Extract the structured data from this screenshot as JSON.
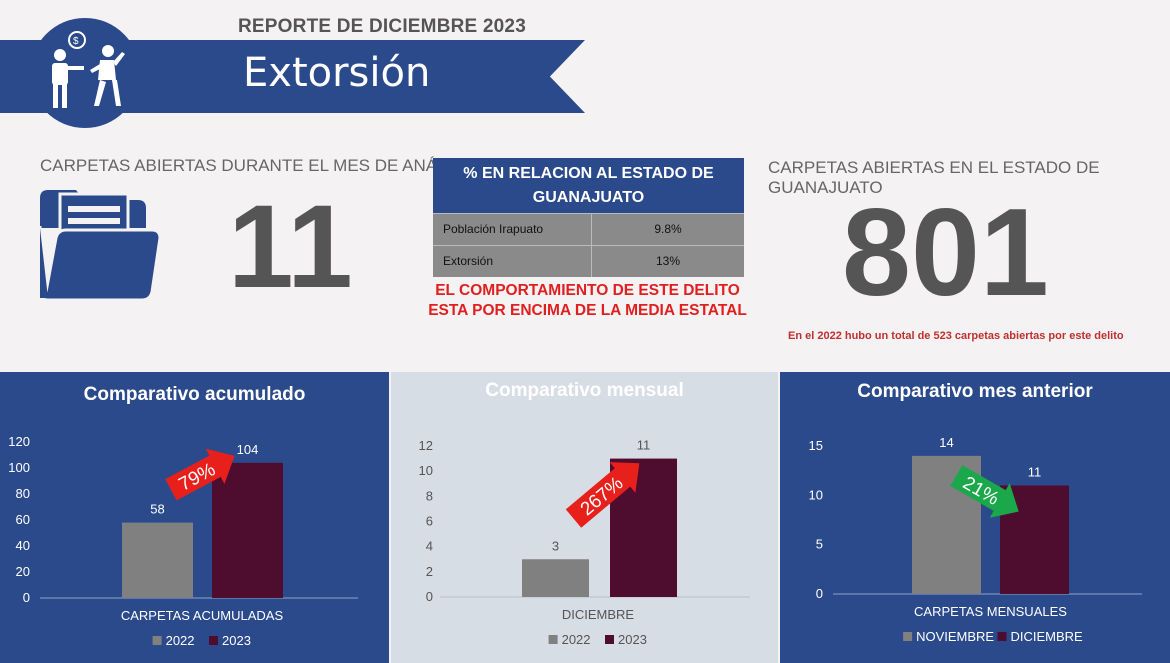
{
  "header": {
    "report_label": "REPORTE DE DICIEMBRE 2023",
    "crime_title": "Extorsión",
    "logo_icon": "extortion-people-icon",
    "brand_color": "#2b4a8c"
  },
  "left_stat": {
    "label": "CARPETAS ABIERTAS DURANTE EL MES DE ANÁLISIS",
    "value": "11",
    "icon": "folder-icon"
  },
  "relation_table": {
    "title": "% EN RELACION AL ESTADO DE GUANAJUATO",
    "rows": [
      {
        "label": "Población Irapuato",
        "value": "9.8%"
      },
      {
        "label": "Extorsión",
        "value": "13%"
      }
    ],
    "warning_line1": "EL COMPORTAMIENTO DE ESTE DELITO",
    "warning_line2": "ESTA POR ENCIMA DE LA MEDIA ESTATAL"
  },
  "right_stat": {
    "label": "CARPETAS ABIERTAS EN EL ESTADO DE GUANAJUATO",
    "value": "801",
    "note": "En el 2022  hubo un total de 523  carpetas abiertas por este delito"
  },
  "chart_data": [
    {
      "type": "bar",
      "title": "Comparativo acumulado",
      "categories": [
        "CARPETAS ACUMULADAS"
      ],
      "series": [
        {
          "name": "2022",
          "values": [
            58
          ],
          "color": "#808080"
        },
        {
          "name": "2023",
          "values": [
            104
          ],
          "color": "#4e0d2e"
        }
      ],
      "ylim": [
        0,
        120
      ],
      "yticks": [
        0,
        20,
        40,
        60,
        80,
        100,
        120
      ],
      "change_label": "79%",
      "change_color": "#e8201c",
      "change_direction": "up",
      "legend": "bottom",
      "background": "#2b4a8c"
    },
    {
      "type": "bar",
      "title": "Comparativo mensual",
      "categories": [
        "DICIEMBRE"
      ],
      "series": [
        {
          "name": "2022",
          "values": [
            3
          ],
          "color": "#808080"
        },
        {
          "name": "2023",
          "values": [
            11
          ],
          "color": "#4e0d2e"
        }
      ],
      "ylim": [
        0,
        12
      ],
      "yticks": [
        0,
        2,
        4,
        6,
        8,
        10,
        12
      ],
      "change_label": "267%",
      "change_color": "#e8201c",
      "change_direction": "up",
      "legend": "bottom",
      "background": "#d7dde5"
    },
    {
      "type": "bar",
      "title": "Comparativo mes anterior",
      "categories": [
        "CARPETAS MENSUALES"
      ],
      "series": [
        {
          "name": "NOVIEMBRE",
          "values": [
            14
          ],
          "color": "#808080"
        },
        {
          "name": "DICIEMBRE",
          "values": [
            11
          ],
          "color": "#4e0d2e"
        }
      ],
      "ylim": [
        0,
        15
      ],
      "yticks": [
        0,
        5,
        10,
        15
      ],
      "change_label": "21%",
      "change_color": "#1aa84a",
      "change_direction": "down",
      "legend": "bottom",
      "background": "#2b4a8c"
    }
  ]
}
